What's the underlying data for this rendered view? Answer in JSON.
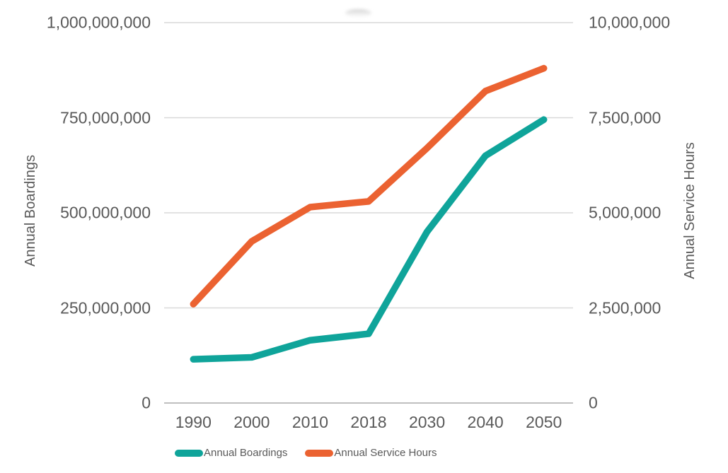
{
  "chart_data": {
    "type": "line",
    "title": "",
    "categories": [
      "1990",
      "2000",
      "2010",
      "2018",
      "2030",
      "2040",
      "2050"
    ],
    "series": [
      {
        "name": "Annual Boardings",
        "axis": "left",
        "color": "#0FA49A",
        "values": [
          115000000,
          120000000,
          165000000,
          182000000,
          450000000,
          650000000,
          745000000
        ]
      },
      {
        "name": "Annual Service Hours",
        "axis": "right",
        "color": "#EB6231",
        "values": [
          2600000,
          4250000,
          5150000,
          5300000,
          6700000,
          8200000,
          8800000
        ]
      }
    ],
    "axes": {
      "left": {
        "title": "Annual Boardings",
        "min": 0,
        "max": 1000000000,
        "tick_labels": [
          "0",
          "250,000,000",
          "500,000,000",
          "750,000,000",
          "1,000,000,000"
        ]
      },
      "right": {
        "title": "Annual Service Hours",
        "min": 0,
        "max": 10000000,
        "tick_labels": [
          "0",
          "2,500,000",
          "5,000,000",
          "7,500,000",
          "10,000,000"
        ]
      }
    },
    "grid": true,
    "legend_position": "bottom",
    "colors": {
      "text": "#595959",
      "gridline": "#D9D9D9",
      "axis_line": "#BFBFBF"
    }
  }
}
